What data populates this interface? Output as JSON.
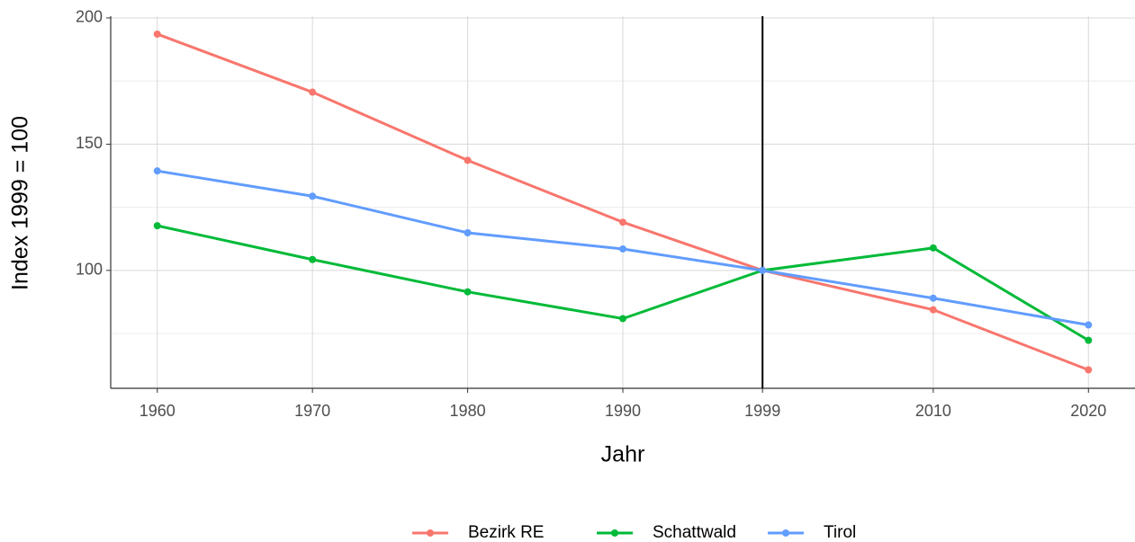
{
  "chart_data": {
    "type": "line",
    "x_label": "Jahr",
    "y_label": "Index 1999 = 100",
    "x": [
      1960,
      1970,
      1980,
      1990,
      1999,
      2010,
      2020
    ],
    "series": [
      {
        "name": "Bezirk RE",
        "color": "#F8766D",
        "values": [
          193.6,
          170.6,
          143.6,
          119.1,
          100,
          84.4,
          60.6
        ]
      },
      {
        "name": "Schattwald",
        "color": "#00BA38",
        "values": [
          117.7,
          104.3,
          91.5,
          80.9,
          100,
          108.9,
          72.3
        ]
      },
      {
        "name": "Tirol",
        "color": "#619CFF",
        "values": [
          139.4,
          129.4,
          114.9,
          108.5,
          100,
          89,
          78.4
        ]
      }
    ],
    "xlim": [
      1957,
      2023
    ],
    "xticks": [
      1960,
      1970,
      1980,
      1990,
      1999,
      2010,
      2020
    ],
    "ylim": [
      53.3,
      200.7
    ],
    "yticks": [
      100,
      150,
      200
    ],
    "yminor": [
      75,
      125,
      175
    ],
    "vline": 1999,
    "grid": true,
    "legend": "bottom"
  }
}
